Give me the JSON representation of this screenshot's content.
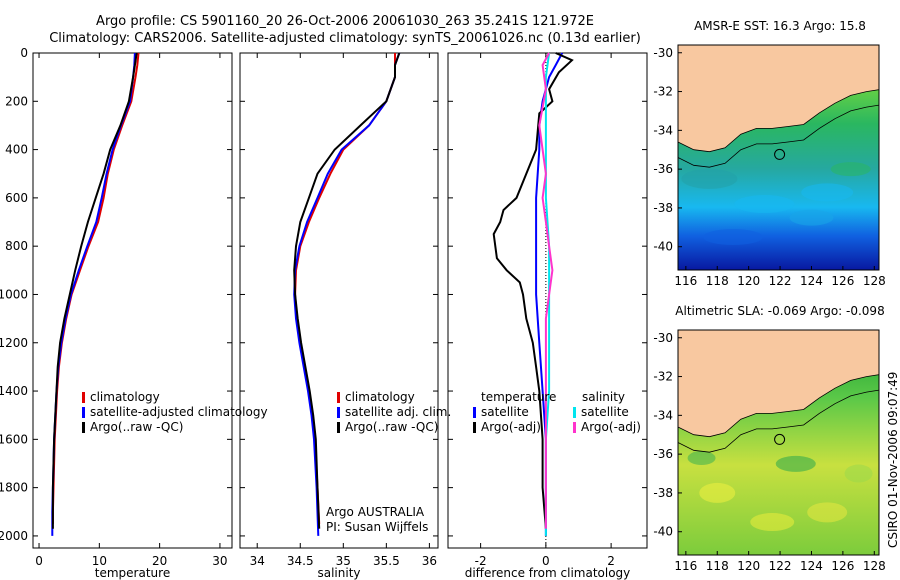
{
  "header": {
    "line1": "Argo profile: CS 5901160_20 26-Oct-2006 20061030_263 35.241S 121.972E",
    "line2": "Climatology: CARS2006. Satellite-adjusted climatology: synTS_20061026.nc (0.13d earlier)"
  },
  "colors": {
    "climatology": "#e00000",
    "satellite": "#0000ff",
    "argo": "#000000",
    "salinity": "#ff33cc",
    "salinity_sat": "#00e5ee",
    "land": "#f8c8a0"
  },
  "chart_data": [
    {
      "type": "line",
      "xlabel": "temperature",
      "ylabel": "",
      "xlim": [
        -1,
        32
      ],
      "ylim": [
        2050,
        0
      ],
      "xticks": [
        0,
        10,
        20,
        30
      ],
      "yticks": [
        0,
        200,
        400,
        600,
        800,
        1000,
        1200,
        1400,
        1600,
        1800,
        2000
      ],
      "legend": [
        "climatology",
        "satellite-adjusted climatology",
        "Argo(..raw -QC)"
      ],
      "series": [
        {
          "name": "climatology",
          "color": "#e00000",
          "points": [
            [
              16.5,
              0
            ],
            [
              16.3,
              50
            ],
            [
              16.0,
              100
            ],
            [
              15.3,
              200
            ],
            [
              13.8,
              300
            ],
            [
              12.4,
              400
            ],
            [
              11.4,
              500
            ],
            [
              10.7,
              600
            ],
            [
              9.8,
              700
            ],
            [
              8.2,
              800
            ],
            [
              6.8,
              900
            ],
            [
              5.4,
              1000
            ],
            [
              4.5,
              1100
            ],
            [
              3.8,
              1200
            ],
            [
              3.3,
              1300
            ],
            [
              3.0,
              1400
            ],
            [
              2.8,
              1500
            ],
            [
              2.6,
              1600
            ],
            [
              2.4,
              1800
            ],
            [
              2.3,
              1900
            ],
            [
              2.3,
              1950
            ]
          ]
        },
        {
          "name": "satellite-adjusted climatology",
          "color": "#0000ff",
          "points": [
            [
              15.9,
              0
            ],
            [
              15.8,
              50
            ],
            [
              15.6,
              100
            ],
            [
              15.1,
              200
            ],
            [
              13.6,
              300
            ],
            [
              12.2,
              400
            ],
            [
              11.2,
              500
            ],
            [
              10.4,
              600
            ],
            [
              9.5,
              700
            ],
            [
              8.0,
              800
            ],
            [
              6.6,
              900
            ],
            [
              5.3,
              1000
            ],
            [
              4.4,
              1100
            ],
            [
              3.7,
              1200
            ],
            [
              3.2,
              1300
            ],
            [
              2.9,
              1400
            ],
            [
              2.7,
              1500
            ],
            [
              2.5,
              1600
            ],
            [
              2.3,
              1800
            ],
            [
              2.2,
              1900
            ],
            [
              2.2,
              2000
            ]
          ]
        },
        {
          "name": "Argo(..raw -QC)",
          "color": "#000000",
          "points": [
            [
              16.2,
              0
            ],
            [
              15.9,
              50
            ],
            [
              15.6,
              100
            ],
            [
              14.9,
              200
            ],
            [
              13.5,
              300
            ],
            [
              11.8,
              400
            ],
            [
              10.7,
              500
            ],
            [
              9.4,
              600
            ],
            [
              8.1,
              700
            ],
            [
              7.0,
              800
            ],
            [
              6.0,
              900
            ],
            [
              5.1,
              1000
            ],
            [
              4.2,
              1100
            ],
            [
              3.5,
              1200
            ],
            [
              3.1,
              1300
            ],
            [
              2.9,
              1400
            ],
            [
              2.7,
              1500
            ],
            [
              2.5,
              1600
            ],
            [
              2.3,
              1800
            ],
            [
              2.3,
              1900
            ],
            [
              2.3,
              1970
            ]
          ]
        }
      ]
    },
    {
      "type": "line",
      "xlabel": "salinity",
      "ylabel": "",
      "xlim": [
        33.8,
        36.1
      ],
      "ylim": [
        2050,
        0
      ],
      "xticks": [
        34,
        34.5,
        35,
        35.5,
        36
      ],
      "yticks": [
        0,
        200,
        400,
        600,
        800,
        1000,
        1200,
        1400,
        1600,
        1800,
        2000
      ],
      "legend": [
        "climatology",
        "satellite adj. clim.",
        "Argo(..raw -QC)"
      ],
      "annotations": [
        "Argo AUSTRALIA",
        "PI: Susan Wijffels"
      ],
      "series": [
        {
          "name": "climatology",
          "color": "#e00000",
          "points": [
            [
              35.6,
              0
            ],
            [
              35.6,
              50
            ],
            [
              35.6,
              100
            ],
            [
              35.5,
              200
            ],
            [
              35.3,
              300
            ],
            [
              35.0,
              400
            ],
            [
              34.85,
              500
            ],
            [
              34.72,
              600
            ],
            [
              34.6,
              700
            ],
            [
              34.5,
              800
            ],
            [
              34.45,
              900
            ],
            [
              34.44,
              1000
            ],
            [
              34.46,
              1100
            ],
            [
              34.5,
              1200
            ],
            [
              34.55,
              1300
            ],
            [
              34.6,
              1400
            ],
            [
              34.64,
              1500
            ],
            [
              34.67,
              1600
            ],
            [
              34.7,
              1800
            ],
            [
              34.72,
              1950
            ]
          ]
        },
        {
          "name": "satellite adj. clim.",
          "color": "#0000ff",
          "points": [
            [
              35.65,
              0
            ],
            [
              35.6,
              50
            ],
            [
              35.6,
              100
            ],
            [
              35.5,
              200
            ],
            [
              35.3,
              300
            ],
            [
              34.98,
              400
            ],
            [
              34.82,
              500
            ],
            [
              34.7,
              600
            ],
            [
              34.58,
              700
            ],
            [
              34.49,
              800
            ],
            [
              34.44,
              900
            ],
            [
              34.43,
              1000
            ],
            [
              34.45,
              1100
            ],
            [
              34.49,
              1200
            ],
            [
              34.54,
              1300
            ],
            [
              34.59,
              1400
            ],
            [
              34.63,
              1500
            ],
            [
              34.66,
              1600
            ],
            [
              34.69,
              1800
            ],
            [
              34.71,
              2000
            ]
          ]
        },
        {
          "name": "Argo(..raw -QC)",
          "color": "#000000",
          "points": [
            [
              35.65,
              0
            ],
            [
              35.6,
              50
            ],
            [
              35.6,
              100
            ],
            [
              35.5,
              200
            ],
            [
              35.2,
              300
            ],
            [
              34.9,
              400
            ],
            [
              34.7,
              500
            ],
            [
              34.6,
              600
            ],
            [
              34.5,
              700
            ],
            [
              34.45,
              800
            ],
            [
              34.43,
              900
            ],
            [
              34.44,
              1000
            ],
            [
              34.47,
              1100
            ],
            [
              34.51,
              1200
            ],
            [
              34.56,
              1300
            ],
            [
              34.61,
              1400
            ],
            [
              34.65,
              1500
            ],
            [
              34.68,
              1600
            ],
            [
              34.7,
              1800
            ],
            [
              34.72,
              1970
            ]
          ]
        }
      ]
    },
    {
      "type": "line",
      "xlabel": "difference from climatology",
      "ylabel": "",
      "xlim": [
        -3,
        3.1
      ],
      "ylim": [
        2050,
        0
      ],
      "xticks": [
        -2,
        0,
        2
      ],
      "yticks": [
        0,
        200,
        400,
        600,
        800,
        1000,
        1200,
        1400,
        1600,
        1800,
        2000
      ],
      "legend_left_heading": "temperature",
      "legend_right_heading": "salinity",
      "legend": [
        "satellite",
        "Argo(-adj)",
        "satellite",
        "Argo(-adj)"
      ],
      "series": [
        {
          "name": "temperature satellite",
          "color": "#0000ff",
          "points": [
            [
              0.5,
              0
            ],
            [
              0.3,
              50
            ],
            [
              0.1,
              100
            ],
            [
              -0.1,
              200
            ],
            [
              -0.2,
              300
            ],
            [
              -0.2,
              400
            ],
            [
              -0.3,
              600
            ],
            [
              -0.3,
              800
            ],
            [
              -0.3,
              1000
            ],
            [
              -0.2,
              1200
            ],
            [
              -0.1,
              1400
            ],
            [
              0.0,
              1600
            ],
            [
              0.0,
              1800
            ],
            [
              0.0,
              2000
            ]
          ]
        },
        {
          "name": "temperature Argo(-adj)",
          "color": "#000000",
          "points": [
            [
              0.3,
              0
            ],
            [
              0.8,
              30
            ],
            [
              0.4,
              80
            ],
            [
              0.1,
              150
            ],
            [
              0.2,
              200
            ],
            [
              -0.2,
              250
            ],
            [
              -0.3,
              400
            ],
            [
              -0.6,
              500
            ],
            [
              -0.9,
              600
            ],
            [
              -1.3,
              650
            ],
            [
              -1.4,
              700
            ],
            [
              -1.6,
              750
            ],
            [
              -1.5,
              850
            ],
            [
              -1.2,
              900
            ],
            [
              -0.8,
              950
            ],
            [
              -0.7,
              1000
            ],
            [
              -0.6,
              1100
            ],
            [
              -0.4,
              1200
            ],
            [
              -0.3,
              1300
            ],
            [
              -0.2,
              1400
            ],
            [
              -0.1,
              1600
            ],
            [
              -0.1,
              1800
            ],
            [
              0.0,
              1970
            ]
          ]
        },
        {
          "name": "salinity satellite",
          "color": "#00e5ee",
          "points": [
            [
              0.1,
              0
            ],
            [
              0.0,
              100
            ],
            [
              0.0,
              200
            ],
            [
              0.0,
              400
            ],
            [
              0.0,
              600
            ],
            [
              0.1,
              800
            ],
            [
              0.1,
              1000
            ],
            [
              0.1,
              1200
            ],
            [
              0.1,
              1400
            ],
            [
              0.0,
              1600
            ],
            [
              0.0,
              1800
            ],
            [
              0.0,
              2000
            ]
          ]
        },
        {
          "name": "salinity Argo(-adj)",
          "color": "#ff33cc",
          "points": [
            [
              0.1,
              0
            ],
            [
              -0.1,
              50
            ],
            [
              0.0,
              150
            ],
            [
              -0.2,
              300
            ],
            [
              -0.1,
              400
            ],
            [
              0.0,
              500
            ],
            [
              -0.1,
              600
            ],
            [
              0.0,
              700
            ],
            [
              0.1,
              800
            ],
            [
              0.2,
              900
            ],
            [
              0.1,
              1000
            ],
            [
              0.0,
              1100
            ],
            [
              0.0,
              1200
            ],
            [
              0.0,
              1300
            ],
            [
              0.0,
              1400
            ],
            [
              0.0,
              1600
            ],
            [
              0.0,
              1800
            ],
            [
              0.0,
              1970
            ]
          ]
        }
      ]
    },
    {
      "type": "heatmap",
      "title": "AMSR-E SST: 16.3  Argo: 15.8",
      "xlim": [
        115.5,
        128.3
      ],
      "ylim": [
        -41.2,
        -29.6
      ],
      "xticks": [
        116,
        118,
        120,
        122,
        124,
        126,
        128
      ],
      "yticks": [
        -30,
        -32,
        -34,
        -36,
        -38,
        -40
      ],
      "marker": {
        "lon": 121.97,
        "lat": -35.24
      }
    },
    {
      "type": "heatmap",
      "title": "Altimetric SLA: -0.069  Argo: -0.098",
      "xlim": [
        115.5,
        128.3
      ],
      "ylim": [
        -41.2,
        -29.6
      ],
      "xticks": [
        116,
        118,
        120,
        122,
        124,
        126,
        128
      ],
      "yticks": [
        -30,
        -32,
        -34,
        -36,
        -38,
        -40
      ],
      "marker": {
        "lon": 121.97,
        "lat": -35.24
      }
    }
  ],
  "footer": {
    "credit": "CSIRO 01-Nov-2006 09:07:49"
  }
}
